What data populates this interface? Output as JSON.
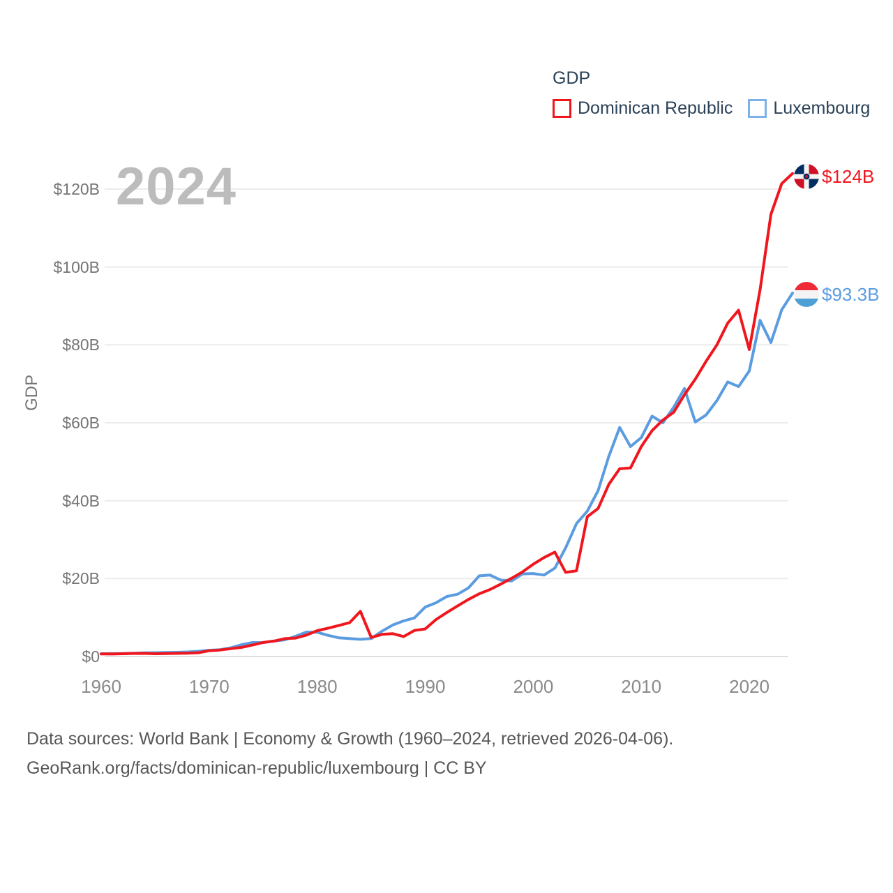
{
  "legend": {
    "title": "GDP",
    "items": [
      {
        "label": "Dominican Republic",
        "color": "#f0161e"
      },
      {
        "label": "Luxembourg",
        "color": "#7cb2e8"
      }
    ]
  },
  "watermark_year": "2024",
  "y_axis": {
    "title": "GDP",
    "ticks": [
      {
        "value": 0,
        "label": "$0"
      },
      {
        "value": 20,
        "label": "$20B"
      },
      {
        "value": 40,
        "label": "$40B"
      },
      {
        "value": 60,
        "label": "$60B"
      },
      {
        "value": 80,
        "label": "$80B"
      },
      {
        "value": 100,
        "label": "$100B"
      },
      {
        "value": 120,
        "label": "$120B"
      }
    ]
  },
  "x_axis": {
    "ticks": [
      {
        "value": 1960,
        "label": "1960"
      },
      {
        "value": 1970,
        "label": "1970"
      },
      {
        "value": 1980,
        "label": "1980"
      },
      {
        "value": 1990,
        "label": "1990"
      },
      {
        "value": 2000,
        "label": "2000"
      },
      {
        "value": 2010,
        "label": "2010"
      },
      {
        "value": 2020,
        "label": "2020"
      }
    ]
  },
  "end_labels": [
    {
      "series": "Dominican Republic",
      "value_label": "$124B",
      "color": "#f0161e",
      "flag": "dominican-republic-flag"
    },
    {
      "series": "Luxembourg",
      "value_label": "$93.3B",
      "color": "#5b9ce0",
      "flag": "luxembourg-flag"
    }
  ],
  "footer": {
    "line1": "Data sources: World Bank | Economy & Growth (1960–2024, retrieved 2026-04-06).",
    "line2": "GeoRank.org/facts/dominican-republic/luxembourg | CC BY"
  },
  "chart_data": {
    "type": "line",
    "title": "GDP",
    "ylabel": "GDP",
    "xlabel": "",
    "xlim": [
      1960,
      2024
    ],
    "ylim": [
      0,
      130
    ],
    "grid": "horizontal",
    "legend_position": "top-right",
    "x": [
      1960,
      1961,
      1962,
      1963,
      1964,
      1965,
      1966,
      1967,
      1968,
      1969,
      1970,
      1971,
      1972,
      1973,
      1974,
      1975,
      1976,
      1977,
      1978,
      1979,
      1980,
      1981,
      1982,
      1983,
      1984,
      1985,
      1986,
      1987,
      1988,
      1989,
      1990,
      1991,
      1992,
      1993,
      1994,
      1995,
      1996,
      1997,
      1998,
      1999,
      2000,
      2001,
      2002,
      2003,
      2004,
      2005,
      2006,
      2007,
      2008,
      2009,
      2010,
      2011,
      2012,
      2013,
      2014,
      2015,
      2016,
      2017,
      2018,
      2019,
      2020,
      2021,
      2022,
      2023,
      2024
    ],
    "unit": "billions of current US$",
    "series": [
      {
        "name": "Dominican Republic",
        "color": "#f0161e",
        "end_value_label": "$124B",
        "values": [
          0.67,
          0.64,
          0.72,
          0.78,
          0.8,
          0.72,
          0.76,
          0.8,
          0.85,
          0.96,
          1.49,
          1.67,
          2.0,
          2.35,
          2.93,
          3.6,
          3.95,
          4.58,
          4.73,
          5.5,
          6.63,
          7.27,
          7.96,
          8.68,
          11.59,
          4.89,
          5.68,
          5.85,
          5.12,
          6.68,
          7.07,
          9.5,
          11.3,
          13.0,
          14.65,
          16.1,
          17.2,
          18.6,
          20.1,
          21.7,
          23.7,
          25.4,
          26.8,
          21.6,
          22.0,
          35.9,
          38.0,
          44.2,
          48.2,
          48.4,
          53.9,
          58.0,
          60.7,
          62.7,
          67.2,
          71.2,
          75.8,
          80.0,
          85.6,
          88.9,
          78.8,
          94.2,
          113.5,
          121.4,
          124.0
        ]
      },
      {
        "name": "Luxembourg",
        "color": "#5b9ce0",
        "end_value_label": "$93.3B",
        "values": [
          0.7,
          0.73,
          0.76,
          0.82,
          0.93,
          0.97,
          1.03,
          1.07,
          1.17,
          1.34,
          1.6,
          1.75,
          2.22,
          3.02,
          3.58,
          3.57,
          3.95,
          4.28,
          5.2,
          6.26,
          6.21,
          5.42,
          4.8,
          4.6,
          4.4,
          4.61,
          6.5,
          8.1,
          9.14,
          9.9,
          12.7,
          13.8,
          15.4,
          16.0,
          17.6,
          20.7,
          20.9,
          19.6,
          19.4,
          21.2,
          21.3,
          20.9,
          22.7,
          27.9,
          34.1,
          37.3,
          42.6,
          51.4,
          58.8,
          53.9,
          56.2,
          61.7,
          60.0,
          64.0,
          68.8,
          60.2,
          62.0,
          65.7,
          70.5,
          69.3,
          73.3,
          86.3,
          80.6,
          89.0,
          93.3
        ]
      }
    ]
  }
}
